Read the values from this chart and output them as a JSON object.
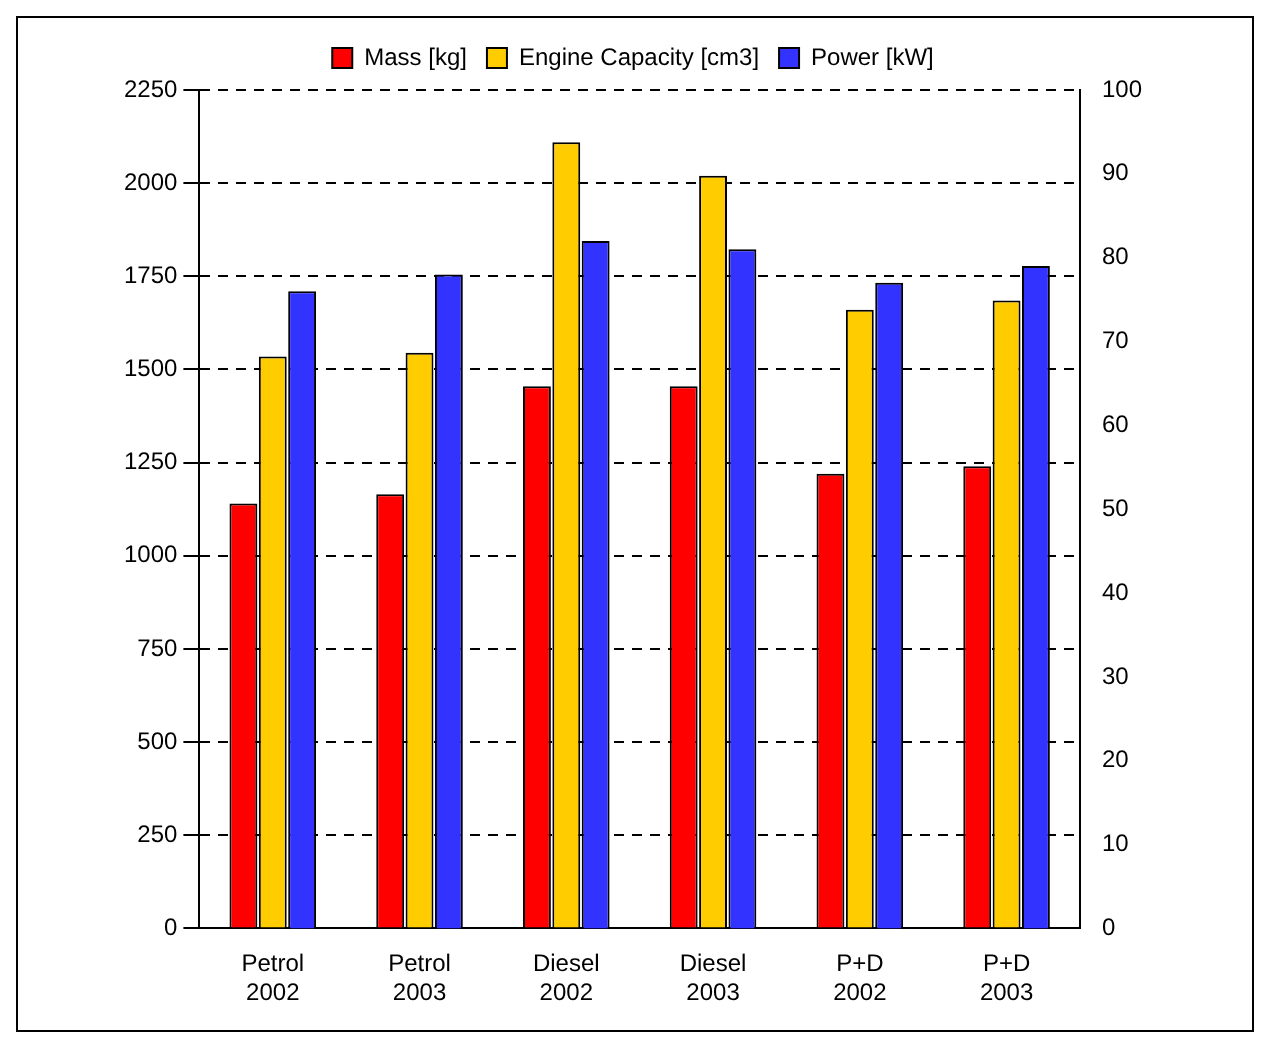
{
  "chart_data": {
    "type": "bar",
    "categories": [
      "Petrol 2002",
      "Petrol 2003",
      "Diesel 2002",
      "Diesel 2003",
      "P+D 2002",
      "P+D 2003"
    ],
    "series": [
      {
        "name": "Mass [kg]",
        "color": "#ff0000",
        "values": [
          1140,
          1165,
          1455,
          1455,
          1220,
          1240
        ]
      },
      {
        "name": "Engine Capacity [cm3]",
        "color": "#ffcc00",
        "values": [
          1535,
          1545,
          2110,
          2020,
          1660,
          1685
        ]
      },
      {
        "name": "Power [kW]",
        "color": "#3333ff",
        "axis": "y2",
        "values": [
          76,
          78,
          82,
          81,
          77,
          79
        ]
      }
    ],
    "ylim": [
      0,
      2250
    ],
    "yticks": [
      0,
      250,
      500,
      750,
      1000,
      1250,
      1500,
      1750,
      2000,
      2250
    ],
    "y2lim": [
      0,
      100
    ],
    "y2ticks": [
      0,
      10,
      20,
      30,
      40,
      50,
      60,
      70,
      80,
      90,
      100
    ],
    "grid": "y",
    "legend": "top"
  }
}
